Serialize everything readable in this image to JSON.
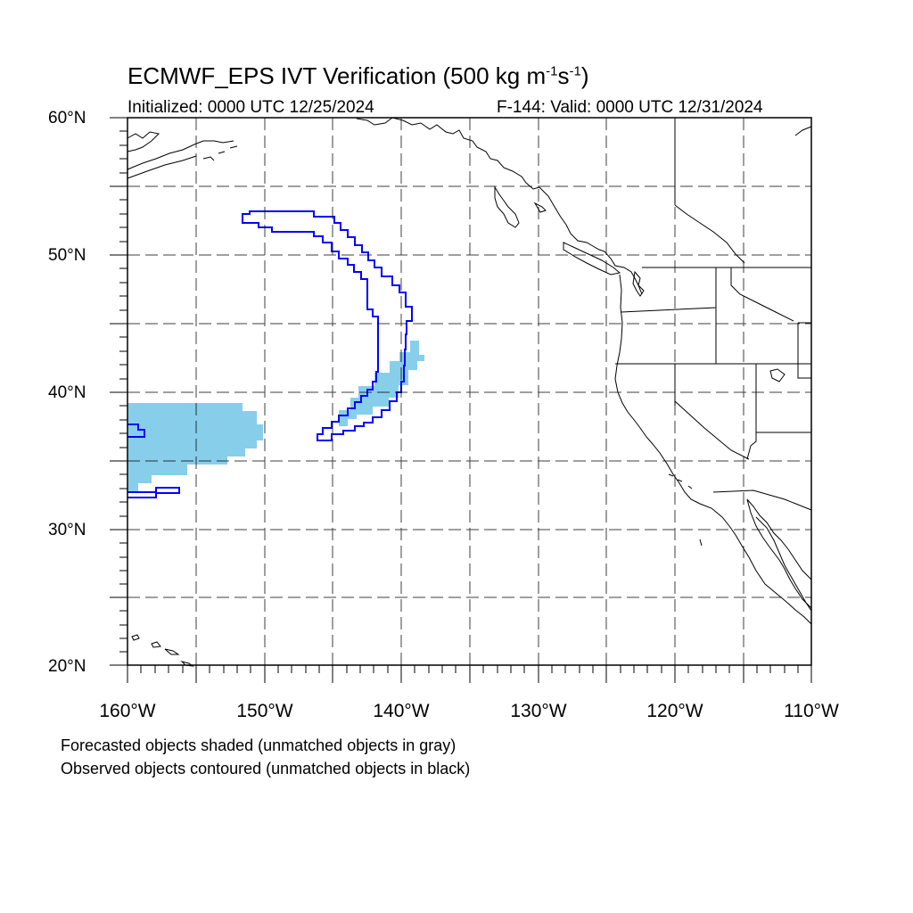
{
  "title": {
    "main": "ECMWF_EPS IVT Verification (500 kg m",
    "sup1": "-1",
    "mid": "s",
    "sup2": "-1",
    "end": ")"
  },
  "subtitle_left": "Initialized: 0000 UTC 12/25/2024",
  "subtitle_right": "F-144: Valid: 0000 UTC 12/31/2024",
  "lat_labels": [
    "60°N",
    "50°N",
    "40°N",
    "30°N",
    "20°N"
  ],
  "lon_labels": [
    "160°W",
    "150°W",
    "140°W",
    "130°W",
    "120°W",
    "110°W"
  ],
  "notes": {
    "forecast": "Forecasted objects shaded (unmatched objects in gray)",
    "observed": "Observed objects contoured (unmatched objects in black)"
  },
  "colors": {
    "forecast_fill": "#87ceeb",
    "observed_contour": "#0000ff",
    "coastline": "#000000",
    "grid": "#000000"
  }
}
